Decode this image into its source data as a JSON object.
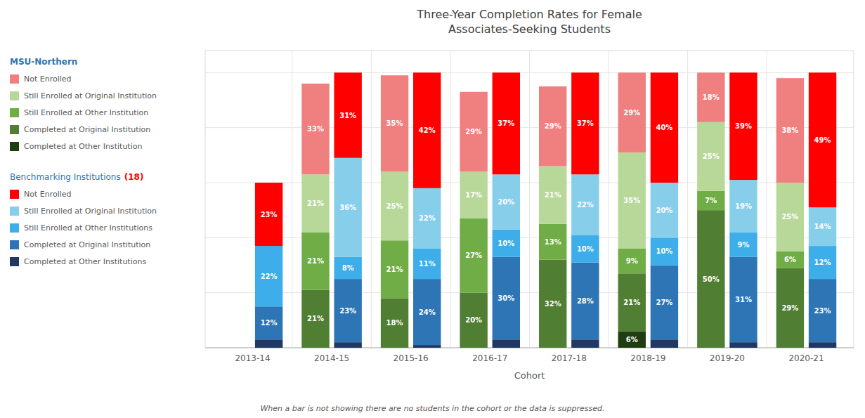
{
  "chart_data": {
    "type": "bar",
    "stacked": true,
    "data_labels": true,
    "grid": true,
    "legend": "left",
    "tick_labels": "x",
    "title": "Three-Year Completion Rates for Female\nAssociates-Seeking Students",
    "xlabel": "Cohort",
    "footnote": "When a bar is not showing there are no students in the cohort or the data is suppressed.",
    "categories": [
      "2013-14",
      "2014-15",
      "2015-16",
      "2016-17",
      "2017-18",
      "2018-19",
      "2019-20",
      "2020-21"
    ],
    "ylim": [
      0,
      108
    ],
    "yticks": [
      0,
      20,
      40,
      60,
      80,
      100
    ],
    "stacks": [
      {
        "name": "MSU-Northern",
        "series": [
          {
            "name": "Completed at Other Institution",
            "color": "#1F3D10",
            "values": [
              0,
              0,
              0,
              0,
              0,
              6,
              0,
              0
            ],
            "value_labels": [
              null,
              null,
              null,
              null,
              null,
              "6%",
              null,
              null
            ]
          },
          {
            "name": "Completed at Original Institution",
            "color": "#507E32",
            "values": [
              0,
              21,
              18,
              20,
              32,
              21,
              50,
              29
            ],
            "value_labels": [
              null,
              "21%",
              "18%",
              "20%",
              "32%",
              "21%",
              "50%",
              "29%"
            ]
          },
          {
            "name": "Still Enrolled at Other Institution",
            "color": "#70AD47",
            "values": [
              0,
              21,
              21,
              27,
              13,
              9,
              7,
              6
            ],
            "value_labels": [
              null,
              "21%",
              "21%",
              "27%",
              "13%",
              "9%",
              "7%",
              "6%"
            ]
          },
          {
            "name": "Still Enrolled at Original Institution",
            "color": "#B8D89A",
            "values": [
              0,
              21,
              25,
              17,
              21,
              35,
              25,
              25
            ],
            "value_labels": [
              null,
              "21%",
              "25%",
              "17%",
              "21%",
              "35%",
              "25%",
              "25%"
            ]
          },
          {
            "name": "Not Enrolled",
            "color": "#F08080",
            "values": [
              0,
              33,
              35,
              29,
              29,
              29,
              18,
              38
            ],
            "value_labels": [
              null,
              "33%",
              "35%",
              "29%",
              "29%",
              "29%",
              "18%",
              "38%"
            ]
          }
        ]
      },
      {
        "name": "Benchmarking Institutions",
        "count_label": "(18)",
        "series": [
          {
            "name": "Completed at Other Institutions",
            "color": "#1F3864",
            "values": [
              3,
              2,
              1,
              3,
              3,
              3,
              2,
              2
            ],
            "value_labels": [
              null,
              null,
              null,
              null,
              null,
              null,
              null,
              null
            ]
          },
          {
            "name": "Completed at Original Institution",
            "color": "#2E75B6",
            "values": [
              12,
              23,
              24,
              30,
              28,
              27,
              31,
              23
            ],
            "value_labels": [
              "12%",
              "23%",
              "24%",
              "30%",
              "28%",
              "27%",
              "31%",
              "23%"
            ]
          },
          {
            "name": "Still Enrolled at Other Institutions",
            "color": "#3DAEE9",
            "values": [
              22,
              8,
              11,
              10,
              10,
              10,
              9,
              12
            ],
            "value_labels": [
              "22%",
              "8%",
              "11%",
              "10%",
              "10%",
              "10%",
              "9%",
              "12%"
            ]
          },
          {
            "name": "Still Enrolled at Original Institution",
            "color": "#87CEEB",
            "values": [
              0,
              36,
              22,
              20,
              22,
              20,
              19,
              14
            ],
            "value_labels": [
              null,
              "36%",
              "22%",
              "20%",
              "22%",
              "20%",
              "19%",
              "14%"
            ]
          },
          {
            "name": "Not Enrolled",
            "color": "#FF0000",
            "values": [
              23,
              31,
              42,
              37,
              37,
              40,
              39,
              49
            ],
            "value_labels": [
              "23%",
              "31%",
              "42%",
              "37%",
              "37%",
              "40%",
              "39%",
              "49%"
            ]
          }
        ]
      }
    ]
  }
}
